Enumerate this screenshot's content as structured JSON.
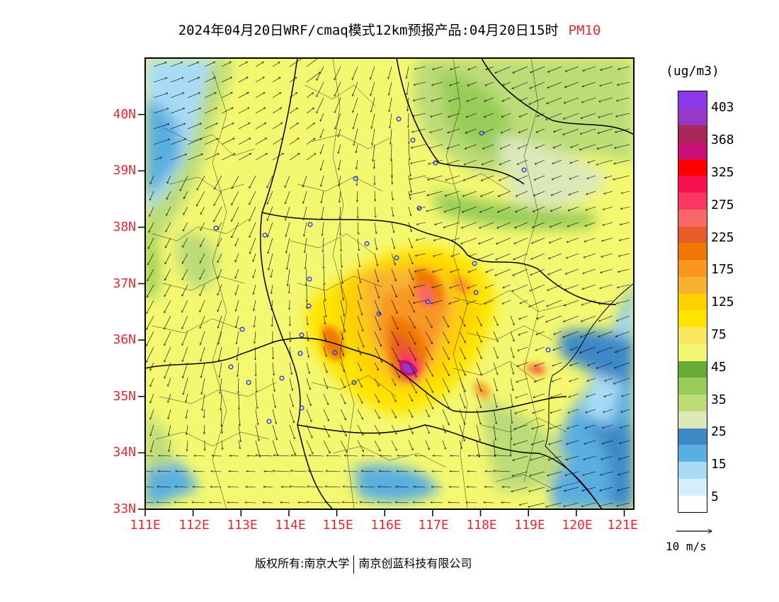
{
  "title": {
    "main": "2024年04月20日WRF/cmaq模式12km预报产品:04月20日15时",
    "pollutant": "PM10"
  },
  "map": {
    "lat_labels": [
      "33N",
      "34N",
      "35N",
      "36N",
      "37N",
      "38N",
      "39N",
      "40N"
    ],
    "lon_labels": [
      "111E",
      "112E",
      "113E",
      "114E",
      "115E",
      "116E",
      "117E",
      "118E",
      "119E",
      "120E",
      "121E"
    ],
    "lat_range": [
      33,
      41
    ],
    "lon_range": [
      111,
      121.2
    ]
  },
  "legend": {
    "unit": "(ug/m3)",
    "levels": [
      "5",
      "15",
      "25",
      "35",
      "45",
      "75",
      "125",
      "175",
      "225",
      "275",
      "325",
      "368",
      "403"
    ],
    "colors": [
      "#ffffff",
      "#d6eefa",
      "#a8dcf5",
      "#5aaee0",
      "#3e88c8",
      "#dce8b8",
      "#bcdc78",
      "#98cc58",
      "#68ac38",
      "#f4f870",
      "#f8e860",
      "#ffe400",
      "#ffd000",
      "#f8b030",
      "#f89820",
      "#f07800",
      "#e85c28",
      "#f86868",
      "#f83860",
      "#f81050",
      "#ff0000",
      "#c81078",
      "#a82858",
      "#9838c8",
      "#8a38e8"
    ]
  },
  "wind_reference": "10 m/s",
  "copyright": {
    "left": "版权所有:南京大学",
    "right": "南京创蓝科技有限公司"
  }
}
